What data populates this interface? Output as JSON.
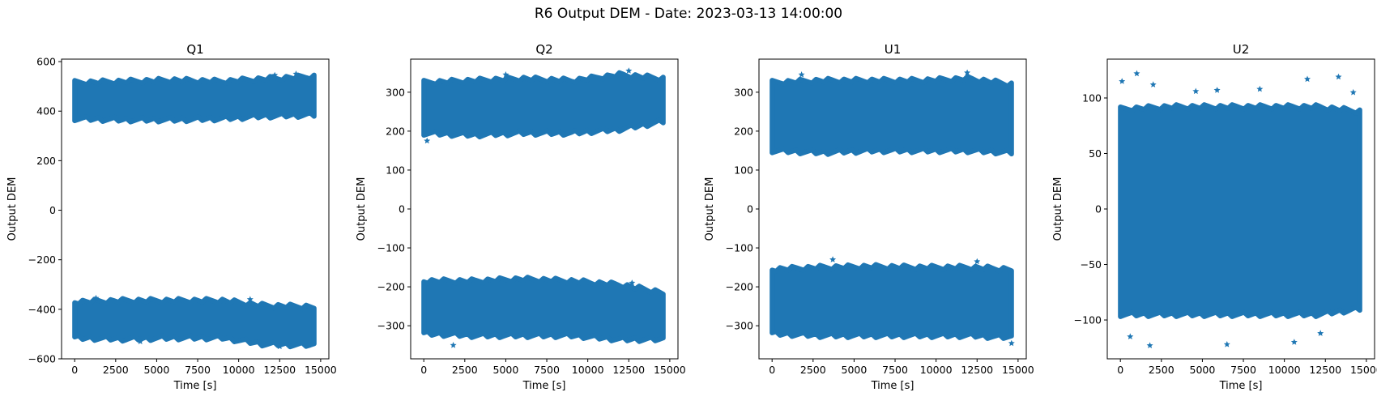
{
  "figure": {
    "suptitle": "R6 Output DEM - Date: 2023-03-13 14:00:00",
    "marker_color": "#1f77b4",
    "marker": "star"
  },
  "chart_data": [
    {
      "type": "scatter",
      "title": "Q1",
      "xlabel": "Time [s]",
      "ylabel": "Output DEM",
      "xlim": [
        -800,
        15500
      ],
      "ylim": [
        -600,
        610
      ],
      "xticks": [
        0,
        2500,
        5000,
        7500,
        10000,
        12500,
        15000
      ],
      "yticks": [
        -600,
        -400,
        -200,
        0,
        200,
        400,
        600
      ],
      "x_range": [
        0,
        14600
      ],
      "bands": [
        {
          "lower": [
            [
              0,
              370
            ],
            [
              3000,
              365
            ],
            [
              6000,
              365
            ],
            [
              9000,
              370
            ],
            [
              11500,
              380
            ],
            [
              14600,
              385
            ]
          ],
          "upper": [
            [
              0,
              515
            ],
            [
              3000,
              520
            ],
            [
              6000,
              525
            ],
            [
              9000,
              520
            ],
            [
              11500,
              530
            ],
            [
              14600,
              540
            ]
          ]
        },
        {
          "lower": [
            [
              0,
              -515
            ],
            [
              3000,
              -520
            ],
            [
              6000,
              -515
            ],
            [
              9000,
              -515
            ],
            [
              11500,
              -540
            ],
            [
              14600,
              -545
            ]
          ],
          "upper": [
            [
              0,
              -370
            ],
            [
              3000,
              -365
            ],
            [
              6000,
              -365
            ],
            [
              9000,
              -365
            ],
            [
              11500,
              -385
            ],
            [
              14600,
              -390
            ]
          ]
        }
      ],
      "outliers": [
        [
          13500,
          550
        ],
        [
          12200,
          545
        ],
        [
          1300,
          -355
        ],
        [
          10700,
          -360
        ],
        [
          4000,
          -530
        ],
        [
          12500,
          -550
        ]
      ],
      "grid": false,
      "legend": "none"
    },
    {
      "type": "scatter",
      "title": "Q2",
      "xlabel": "Time [s]",
      "ylabel": "Output DEM",
      "xlim": [
        -800,
        15500
      ],
      "ylim": [
        -385,
        385
      ],
      "xticks": [
        0,
        2500,
        5000,
        7500,
        10000,
        12500,
        15000
      ],
      "yticks": [
        -300,
        -200,
        -100,
        0,
        100,
        200,
        300
      ],
      "x_range": [
        0,
        14600
      ],
      "bands": [
        {
          "lower": [
            [
              0,
              195
            ],
            [
              3000,
              190
            ],
            [
              6000,
              195
            ],
            [
              9000,
              195
            ],
            [
              12000,
              205
            ],
            [
              14600,
              225
            ]
          ],
          "upper": [
            [
              0,
              325
            ],
            [
              3000,
              330
            ],
            [
              6000,
              335
            ],
            [
              9000,
              330
            ],
            [
              12000,
              345
            ],
            [
              14600,
              335
            ]
          ]
        },
        {
          "lower": [
            [
              0,
              -320
            ],
            [
              3000,
              -325
            ],
            [
              6000,
              -325
            ],
            [
              9000,
              -325
            ],
            [
              12000,
              -335
            ],
            [
              14600,
              -335
            ]
          ],
          "upper": [
            [
              0,
              -185
            ],
            [
              3000,
              -185
            ],
            [
              6000,
              -180
            ],
            [
              9000,
              -185
            ],
            [
              12000,
              -195
            ],
            [
              14600,
              -215
            ]
          ]
        }
      ],
      "outliers": [
        [
          12500,
          355
        ],
        [
          5000,
          345
        ],
        [
          200,
          175
        ],
        [
          1800,
          -350
        ],
        [
          12700,
          -190
        ]
      ],
      "grid": false,
      "legend": "none"
    },
    {
      "type": "scatter",
      "title": "U1",
      "xlabel": "Time [s]",
      "ylabel": "Output DEM",
      "xlim": [
        -800,
        15500
      ],
      "ylim": [
        -385,
        385
      ],
      "xticks": [
        0,
        2500,
        5000,
        7500,
        10000,
        12500,
        15000
      ],
      "yticks": [
        -300,
        -200,
        -100,
        0,
        100,
        200,
        300
      ],
      "x_range": [
        0,
        14600
      ],
      "bands": [
        {
          "lower": [
            [
              0,
              150
            ],
            [
              3000,
              145
            ],
            [
              6000,
              150
            ],
            [
              9000,
              150
            ],
            [
              12000,
              150
            ],
            [
              14600,
              145
            ]
          ],
          "upper": [
            [
              0,
              325
            ],
            [
              3000,
              330
            ],
            [
              6000,
              330
            ],
            [
              9000,
              330
            ],
            [
              12000,
              335
            ],
            [
              14600,
              320
            ]
          ]
        },
        {
          "lower": [
            [
              0,
              -320
            ],
            [
              3000,
              -325
            ],
            [
              6000,
              -325
            ],
            [
              9000,
              -325
            ],
            [
              12000,
              -325
            ],
            [
              14600,
              -330
            ]
          ],
          "upper": [
            [
              0,
              -155
            ],
            [
              3000,
              -150
            ],
            [
              6000,
              -148
            ],
            [
              9000,
              -150
            ],
            [
              12000,
              -150
            ],
            [
              14600,
              -155
            ]
          ]
        }
      ],
      "outliers": [
        [
          1800,
          345
        ],
        [
          11900,
          350
        ],
        [
          3700,
          -130
        ],
        [
          12500,
          -135
        ],
        [
          14600,
          -345
        ]
      ],
      "grid": false,
      "legend": "none"
    },
    {
      "type": "scatter",
      "title": "U2",
      "xlabel": "Time [s]",
      "ylabel": "Output DEM",
      "xlim": [
        -800,
        15500
      ],
      "ylim": [
        -135,
        135
      ],
      "xticks": [
        0,
        2500,
        5000,
        7500,
        10000,
        12500,
        15000
      ],
      "yticks": [
        -100,
        -50,
        0,
        50,
        100
      ],
      "x_range": [
        0,
        14600
      ],
      "bands": [
        {
          "lower": [
            [
              0,
              -95
            ],
            [
              3000,
              -95
            ],
            [
              6000,
              -95
            ],
            [
              9000,
              -95
            ],
            [
              12000,
              -95
            ],
            [
              14600,
              -90
            ]
          ],
          "upper": [
            [
              0,
              90
            ],
            [
              3000,
              92
            ],
            [
              6000,
              92
            ],
            [
              9000,
              92
            ],
            [
              12000,
              92
            ],
            [
              14600,
              88
            ]
          ]
        }
      ],
      "outliers": [
        [
          100,
          115
        ],
        [
          1000,
          122
        ],
        [
          2000,
          112
        ],
        [
          4600,
          106
        ],
        [
          5900,
          107
        ],
        [
          8500,
          108
        ],
        [
          11400,
          117
        ],
        [
          13300,
          119
        ],
        [
          14200,
          105
        ],
        [
          600,
          -115
        ],
        [
          1800,
          -123
        ],
        [
          6500,
          -122
        ],
        [
          10600,
          -120
        ],
        [
          12200,
          -112
        ]
      ],
      "grid": false,
      "legend": "none"
    }
  ]
}
